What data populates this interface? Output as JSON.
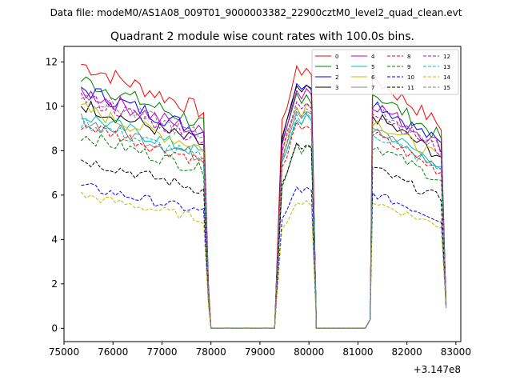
{
  "chart_data": {
    "type": "line",
    "suptitle": "Data file: modeM0/AS1A08_009T01_9000003382_22900cztM0_level2_quad_clean.evt",
    "title": "Quadrant 2 module wise count rates with 100.0s bins.",
    "xlabel": "",
    "ylabel": "",
    "x_offset_label": "+3.147e8",
    "xlim": [
      75000,
      83100
    ],
    "ylim": [
      -0.6,
      12.7
    ],
    "x_ticks": [
      75000,
      76000,
      77000,
      78000,
      79000,
      80000,
      81000,
      82000,
      83000
    ],
    "x_tick_labels": [
      "75000",
      "76000",
      "77000",
      "78000",
      "79000",
      "80000",
      "81000",
      "82000",
      "83000"
    ],
    "y_ticks": [
      0,
      2,
      4,
      6,
      8,
      10,
      12
    ],
    "y_tick_labels": [
      "0",
      "2",
      "4",
      "6",
      "8",
      "10",
      "12"
    ],
    "segments": [
      {
        "start": 75350,
        "end": 77850,
        "fall": 77950,
        "fall_level": 2.0
      },
      {
        "start": 79450,
        "end": 80050,
        "fall": 80150,
        "fall_level": 0.3
      },
      {
        "start": 81300,
        "end": 82750,
        "fall": null,
        "fall_level": null
      }
    ],
    "zero_ranges": [
      [
        78000,
        79350
      ],
      [
        80150,
        81150
      ]
    ],
    "series": [
      {
        "name": "0",
        "color": "#ff0000",
        "dash": "solid",
        "level": 11.9,
        "peak2": 11.8
      },
      {
        "name": "1",
        "color": "#008000",
        "dash": "solid",
        "level": 11.2,
        "peak2": 10.5
      },
      {
        "name": "2",
        "color": "#0000ff",
        "dash": "solid",
        "level": 10.8,
        "peak2": 11.1
      },
      {
        "name": "3",
        "color": "#000000",
        "dash": "solid",
        "level": 10.1,
        "peak2": 10.9
      },
      {
        "name": "4",
        "color": "#c000c0",
        "dash": "solid",
        "level": 10.7,
        "peak2": 10.8
      },
      {
        "name": "5",
        "color": "#00bfbf",
        "dash": "solid",
        "level": 9.6,
        "peak2": 9.5
      },
      {
        "name": "6",
        "color": "#bfbf00",
        "dash": "solid",
        "level": 9.9,
        "peak2": 10.1
      },
      {
        "name": "7",
        "color": "#808080",
        "dash": "solid",
        "level": 9.4,
        "peak2": 9.9
      },
      {
        "name": "8",
        "color": "#ff0000",
        "dash": "dashed",
        "level": 9.2,
        "peak2": 9.2
      },
      {
        "name": "9",
        "color": "#008000",
        "dash": "dashed",
        "level": 8.7,
        "peak2": 8.3
      },
      {
        "name": "10",
        "color": "#0000ff",
        "dash": "dashed",
        "level": 6.4,
        "peak2": 6.3
      },
      {
        "name": "11",
        "color": "#000000",
        "dash": "dashed",
        "level": 7.6,
        "peak2": 8.3
      },
      {
        "name": "12",
        "color": "#c000c0",
        "dash": "dashed",
        "level": 10.4,
        "peak2": 10.2
      },
      {
        "name": "13",
        "color": "#00bfbf",
        "dash": "dashed",
        "level": 9.3,
        "peak2": 9.6
      },
      {
        "name": "14",
        "color": "#bfbf00",
        "dash": "dashed",
        "level": 6.0,
        "peak2": 5.7
      },
      {
        "name": "15",
        "color": "#808080",
        "dash": "dashed",
        "level": 10.5,
        "peak2": 10.0
      }
    ]
  }
}
